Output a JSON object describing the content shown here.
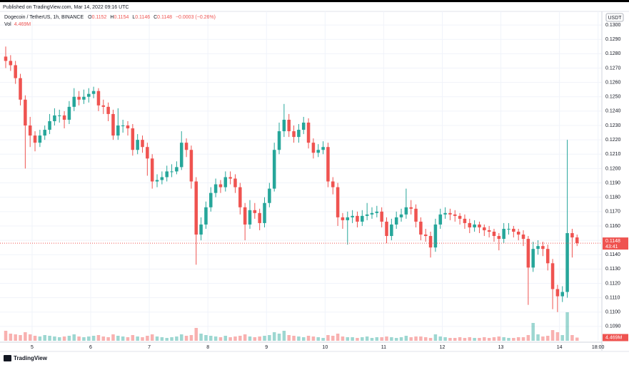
{
  "header": {
    "published": "Published on TradingView.com, Mar 14, 2022 09:16 UTC",
    "footer": "TradingView"
  },
  "chart_data": {
    "type": "candlestick",
    "legend": {
      "symbol": "Dogecoin / TetherUS, 1h, BINANCE",
      "o_label": "O",
      "o": "0.1152",
      "h_label": "H",
      "h": "0.1154",
      "l_label": "L",
      "l": "0.1146",
      "c_label": "C",
      "c": "0.1148",
      "change": "−0.0003 (−0.26%)",
      "vol_label": "Vol",
      "vol": "4.469M"
    },
    "currency": "USDT",
    "price_label": "0.1148",
    "countdown": "43:41",
    "volume_axis_label": "4.469M",
    "up_color": "#26a69a",
    "down_color": "#ef5350",
    "open": [
      0.1278,
      0.1275,
      0.1272,
      0.1263,
      0.1248,
      0.123,
      0.1223,
      0.1218,
      0.1223,
      0.1227,
      0.1233,
      0.1237,
      0.1237,
      0.1234,
      0.1243,
      0.125,
      0.1248,
      0.125,
      0.1252,
      0.1254,
      0.1244,
      0.1243,
      0.1238,
      0.1223,
      0.123,
      0.123,
      0.1228,
      0.1213,
      0.122,
      0.1215,
      0.1207,
      0.1191,
      0.1192,
      0.1194,
      0.1198,
      0.1198,
      0.1201,
      0.1218,
      0.1213,
      0.1191,
      0.1154,
      0.1161,
      0.1173,
      0.1183,
      0.1189,
      0.1187,
      0.1194,
      0.1193,
      0.1187,
      0.1173,
      0.1161,
      0.1171,
      0.1169,
      0.1162,
      0.1176,
      0.1186,
      0.1213,
      0.1226,
      0.1234,
      0.1226,
      0.1222,
      0.1227,
      0.1232,
      0.1218,
      0.1211,
      0.1213,
      0.1215,
      0.1191,
      0.1187,
      0.1166,
      0.1164,
      0.1166,
      0.1167,
      0.1163,
      0.1167,
      0.1168,
      0.1169,
      0.117,
      0.1163,
      0.1153,
      0.1161,
      0.1166,
      0.1168,
      0.1173,
      0.1172,
      0.1163,
      0.1154,
      0.1153,
      0.1145,
      0.1161,
      0.1168,
      0.1169,
      0.1168,
      0.1167,
      0.1165,
      0.1162,
      0.1159,
      0.1161,
      0.1159,
      0.1157,
      0.1156,
      0.1153,
      0.1151,
      0.1158,
      0.1158,
      0.1156,
      0.1154,
      0.1151,
      0.1131,
      0.1144,
      0.1146,
      0.1144,
      0.1134,
      0.1116,
      0.1111,
      0.1114,
      0.1155,
      0.1152
    ],
    "high": [
      0.1285,
      0.1279,
      0.1275,
      0.1266,
      0.1251,
      0.1236,
      0.1226,
      0.1227,
      0.123,
      0.1238,
      0.1242,
      0.1241,
      0.124,
      0.1247,
      0.1256,
      0.1254,
      0.1255,
      0.1256,
      0.1257,
      0.1256,
      0.1248,
      0.1246,
      0.1241,
      0.1242,
      0.1234,
      0.1233,
      0.1231,
      0.1224,
      0.1223,
      0.1218,
      0.121,
      0.1196,
      0.1198,
      0.1202,
      0.1203,
      0.1205,
      0.1226,
      0.1221,
      0.1216,
      0.1194,
      0.1166,
      0.1177,
      0.1187,
      0.1193,
      0.1192,
      0.1198,
      0.1198,
      0.1196,
      0.119,
      0.1176,
      0.1178,
      0.1176,
      0.1172,
      0.118,
      0.119,
      0.1218,
      0.1232,
      0.1245,
      0.1238,
      0.123,
      0.1231,
      0.1236,
      0.1235,
      0.1221,
      0.1217,
      0.1219,
      0.1218,
      0.1194,
      0.119,
      0.1169,
      0.117,
      0.1171,
      0.117,
      0.1171,
      0.1176,
      0.1173,
      0.1174,
      0.1173,
      0.1166,
      0.1165,
      0.117,
      0.1172,
      0.1186,
      0.1178,
      0.1175,
      0.1166,
      0.1158,
      0.1156,
      0.1165,
      0.1172,
      0.1173,
      0.1172,
      0.1171,
      0.1169,
      0.1168,
      0.1165,
      0.1164,
      0.1163,
      0.1161,
      0.116,
      0.1158,
      0.1155,
      0.1162,
      0.1162,
      0.116,
      0.1158,
      0.1157,
      0.1153,
      0.1149,
      0.115,
      0.1149,
      0.1147,
      0.1137,
      0.1119,
      0.1118,
      0.122,
      0.1158,
      0.1154
    ],
    "low": [
      0.127,
      0.1268,
      0.1259,
      0.1244,
      0.12,
      0.1215,
      0.1212,
      0.1215,
      0.122,
      0.1224,
      0.123,
      0.1232,
      0.1228,
      0.1231,
      0.124,
      0.1244,
      0.1245,
      0.1246,
      0.1249,
      0.124,
      0.1238,
      0.1233,
      0.122,
      0.122,
      0.1225,
      0.1223,
      0.1209,
      0.121,
      0.1211,
      0.1195,
      0.1186,
      0.1187,
      0.1189,
      0.1191,
      0.1194,
      0.1196,
      0.1199,
      0.1208,
      0.1186,
      0.1133,
      0.115,
      0.1158,
      0.117,
      0.118,
      0.1183,
      0.1184,
      0.1189,
      0.1183,
      0.1168,
      0.115,
      0.1158,
      0.1165,
      0.1157,
      0.1159,
      0.1173,
      0.1184,
      0.121,
      0.1222,
      0.1222,
      0.1218,
      0.1218,
      0.1224,
      0.1214,
      0.1207,
      0.1208,
      0.121,
      0.1187,
      0.1182,
      0.116,
      0.1158,
      0.1147,
      0.1162,
      0.1159,
      0.116,
      0.1164,
      0.1165,
      0.1166,
      0.1159,
      0.1148,
      0.115,
      0.1158,
      0.1163,
      0.1165,
      0.1168,
      0.1159,
      0.115,
      0.1149,
      0.1138,
      0.1142,
      0.1158,
      0.1165,
      0.1164,
      0.1163,
      0.1161,
      0.1158,
      0.1155,
      0.1156,
      0.1155,
      0.1153,
      0.1152,
      0.1149,
      0.1143,
      0.1148,
      0.1154,
      0.1152,
      0.115,
      0.1146,
      0.1105,
      0.1128,
      0.114,
      0.1139,
      0.1129,
      0.1102,
      0.11,
      0.1107,
      0.111,
      0.1138,
      0.1146
    ],
    "close": [
      0.1275,
      0.1272,
      0.1263,
      0.1248,
      0.123,
      0.1223,
      0.1218,
      0.1223,
      0.1227,
      0.1233,
      0.1237,
      0.1237,
      0.1234,
      0.1243,
      0.125,
      0.1248,
      0.125,
      0.1252,
      0.1254,
      0.1244,
      0.1243,
      0.1238,
      0.1223,
      0.123,
      0.123,
      0.1228,
      0.1213,
      0.122,
      0.1215,
      0.1207,
      0.1191,
      0.1192,
      0.1194,
      0.1198,
      0.1198,
      0.1201,
      0.1218,
      0.1213,
      0.1191,
      0.1154,
      0.1161,
      0.1173,
      0.1183,
      0.1189,
      0.1187,
      0.1194,
      0.1193,
      0.1187,
      0.1173,
      0.1161,
      0.1171,
      0.1169,
      0.1162,
      0.1176,
      0.1186,
      0.1213,
      0.1226,
      0.1234,
      0.1226,
      0.1222,
      0.1227,
      0.1232,
      0.1218,
      0.1211,
      0.1213,
      0.1215,
      0.1191,
      0.1187,
      0.1166,
      0.1164,
      0.1166,
      0.1167,
      0.1163,
      0.1167,
      0.1168,
      0.1169,
      0.117,
      0.1163,
      0.1153,
      0.1161,
      0.1166,
      0.1168,
      0.1173,
      0.1172,
      0.1163,
      0.1154,
      0.1153,
      0.1145,
      0.1161,
      0.1168,
      0.1169,
      0.1168,
      0.1167,
      0.1165,
      0.1162,
      0.1159,
      0.1161,
      0.1159,
      0.1157,
      0.1156,
      0.1153,
      0.1151,
      0.1158,
      0.1158,
      0.1156,
      0.1154,
      0.1151,
      0.1131,
      0.1144,
      0.1146,
      0.1144,
      0.1134,
      0.1116,
      0.1111,
      0.1114,
      0.1155,
      0.1152,
      0.1148
    ],
    "volume": [
      14,
      10,
      9,
      8,
      12,
      9,
      7,
      6,
      8,
      7,
      6,
      5,
      6,
      7,
      9,
      6,
      5,
      6,
      7,
      8,
      6,
      5,
      9,
      7,
      6,
      5,
      8,
      6,
      5,
      7,
      9,
      6,
      5,
      4,
      5,
      6,
      9,
      7,
      8,
      18,
      10,
      8,
      7,
      6,
      5,
      7,
      5,
      6,
      7,
      9,
      6,
      5,
      6,
      7,
      8,
      12,
      10,
      14,
      8,
      7,
      6,
      5,
      7,
      6,
      5,
      4,
      8,
      7,
      10,
      6,
      5,
      5,
      4,
      5,
      6,
      4,
      5,
      5,
      6,
      5,
      4,
      5,
      7,
      5,
      6,
      6,
      5,
      4,
      9,
      6,
      5,
      4,
      4,
      5,
      4,
      5,
      4,
      4,
      5,
      4,
      5,
      6,
      5,
      4,
      4,
      5,
      5,
      8,
      25,
      9,
      6,
      7,
      15,
      12,
      8,
      40,
      8,
      4.469
    ],
    "xlim": [
      -1.17,
      122.08
    ],
    "ylim": [
      0.108,
      0.13075
    ],
    "xticks": [
      {
        "value": 5.4,
        "label": "5"
      },
      {
        "value": 17.4,
        "label": "6"
      },
      {
        "value": 29.4,
        "label": "7"
      },
      {
        "value": 41.4,
        "label": "8"
      },
      {
        "value": 53.4,
        "label": "9"
      },
      {
        "value": 65.4,
        "label": "10"
      },
      {
        "value": 77.4,
        "label": "11"
      },
      {
        "value": 89.4,
        "label": "12"
      },
      {
        "value": 101.4,
        "label": "13"
      },
      {
        "value": 113.4,
        "label": "14"
      },
      {
        "value": 121.3,
        "label": "18:00"
      }
    ],
    "yticks": [
      {
        "value": 0.109,
        "label": "0.1090"
      },
      {
        "value": 0.11,
        "label": "0.1100"
      },
      {
        "value": 0.111,
        "label": "0.1110"
      },
      {
        "value": 0.112,
        "label": "0.1120"
      },
      {
        "value": 0.113,
        "label": "0.1130"
      },
      {
        "value": 0.114,
        "label": "0.1140"
      },
      {
        "value": 0.115,
        "label": "0.1150"
      },
      {
        "value": 0.116,
        "label": "0.1160"
      },
      {
        "value": 0.117,
        "label": "0.1170"
      },
      {
        "value": 0.118,
        "label": "0.1180"
      },
      {
        "value": 0.119,
        "label": "0.1190"
      },
      {
        "value": 0.12,
        "label": "0.1200"
      },
      {
        "value": 0.121,
        "label": "0.1210"
      },
      {
        "value": 0.122,
        "label": "0.1220"
      },
      {
        "value": 0.123,
        "label": "0.1230"
      },
      {
        "value": 0.124,
        "label": "0.1240"
      },
      {
        "value": 0.125,
        "label": "0.1250"
      },
      {
        "value": 0.126,
        "label": "0.1260"
      },
      {
        "value": 0.127,
        "label": "0.1270"
      },
      {
        "value": 0.128,
        "label": "0.1280"
      },
      {
        "value": 0.129,
        "label": "0.1290"
      },
      {
        "value": 0.13,
        "label": "0.1300"
      }
    ],
    "grid": true
  }
}
